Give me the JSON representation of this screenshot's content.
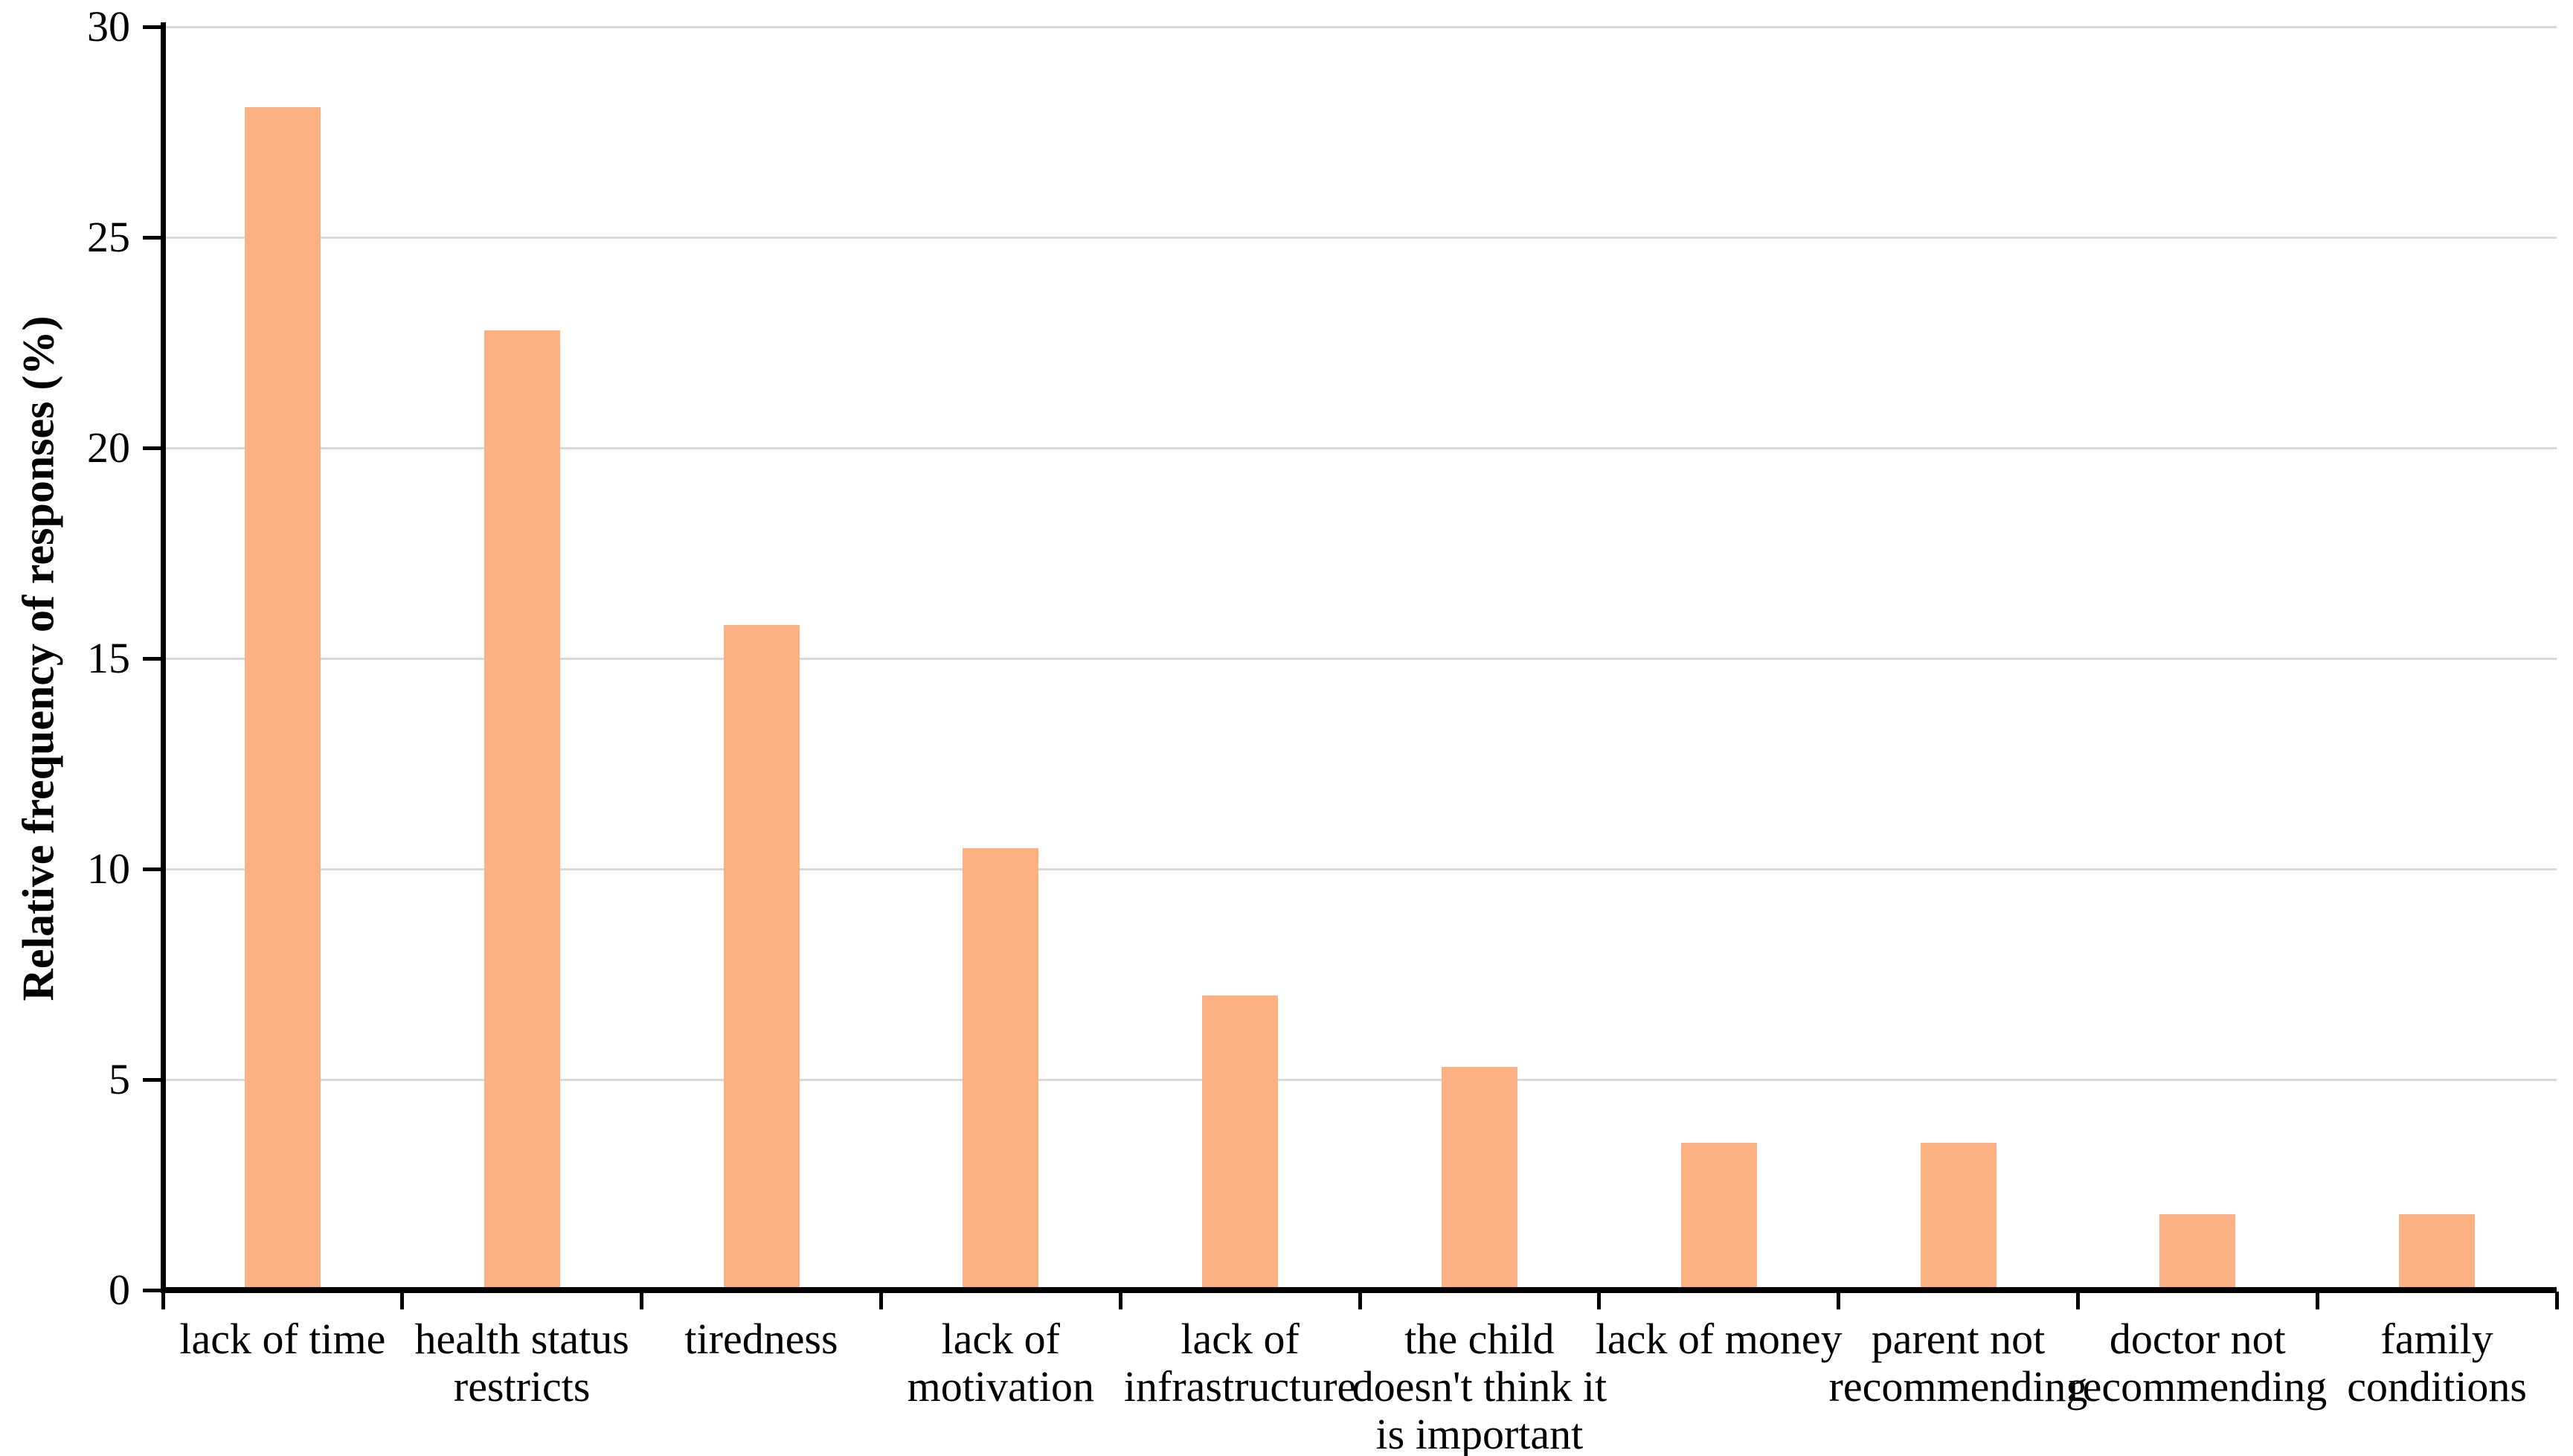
{
  "chart_data": {
    "type": "bar",
    "title": "",
    "ylabel": "Relative frequency of responses (%)",
    "xlabel": "",
    "ylim": [
      0,
      30
    ],
    "yticks": [
      0,
      5,
      10,
      15,
      20,
      25,
      30
    ],
    "grid": "horizontal",
    "legend_position": "none",
    "categories": [
      "lack of time",
      "health status restricts",
      "tiredness",
      "lack of motivation",
      "lack of infrastructure",
      "the child doesn't think it is important",
      "lack of money",
      "parent not recommending",
      "doctor not recommending",
      "family conditions"
    ],
    "category_label_lines": [
      [
        "lack of time"
      ],
      [
        "health status",
        "restricts"
      ],
      [
        "tiredness"
      ],
      [
        "lack of",
        "motivation"
      ],
      [
        "lack of",
        "infrastructure"
      ],
      [
        "the child",
        "doesn't think it",
        "is important"
      ],
      [
        "lack of money"
      ],
      [
        "parent not",
        "recommending"
      ],
      [
        "doctor not",
        "recommending"
      ],
      [
        "family",
        "conditions"
      ]
    ],
    "values": [
      28.1,
      22.8,
      15.8,
      10.5,
      7.0,
      5.3,
      3.5,
      3.5,
      1.8,
      1.8
    ],
    "colors": {
      "bar_fill": "#FDB183",
      "gridline": "#D9D9D9",
      "axis": "#000000",
      "text": "#000000",
      "background": "#FFFFFF"
    }
  }
}
